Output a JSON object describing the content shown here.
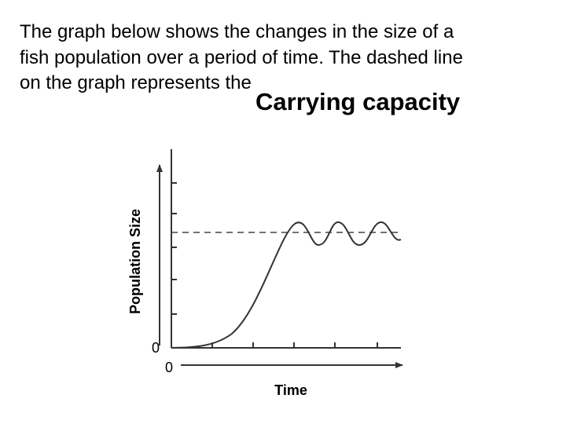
{
  "question": {
    "lines": [
      "The graph below shows the changes in the size of a",
      "fish population over a period of time. The dashed line",
      "on the graph represents the"
    ]
  },
  "answer": "Carrying capacity",
  "graph": {
    "y_label": "Population Size",
    "x_label": "Time",
    "y_origin": "0",
    "x_origin": "0"
  }
}
